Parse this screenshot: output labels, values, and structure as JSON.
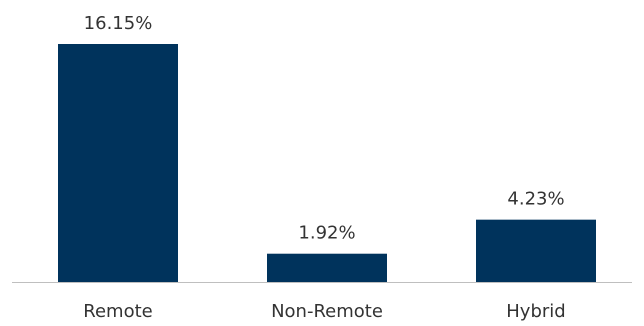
{
  "chart_data": {
    "type": "bar",
    "categories": [
      "Remote",
      "Non-Remote",
      "Hybrid"
    ],
    "values": [
      16.15,
      1.92,
      4.23
    ],
    "data_labels": [
      "16.15%",
      "1.92%",
      "4.23%"
    ],
    "value_unit": "%",
    "title": "",
    "xlabel": "",
    "ylabel": "",
    "ylim": [
      0,
      16.15
    ],
    "grid": false,
    "legend": "none",
    "colors": {
      "bar": "#00335c",
      "axis": "#bfbfbf",
      "text": "#333333"
    }
  }
}
